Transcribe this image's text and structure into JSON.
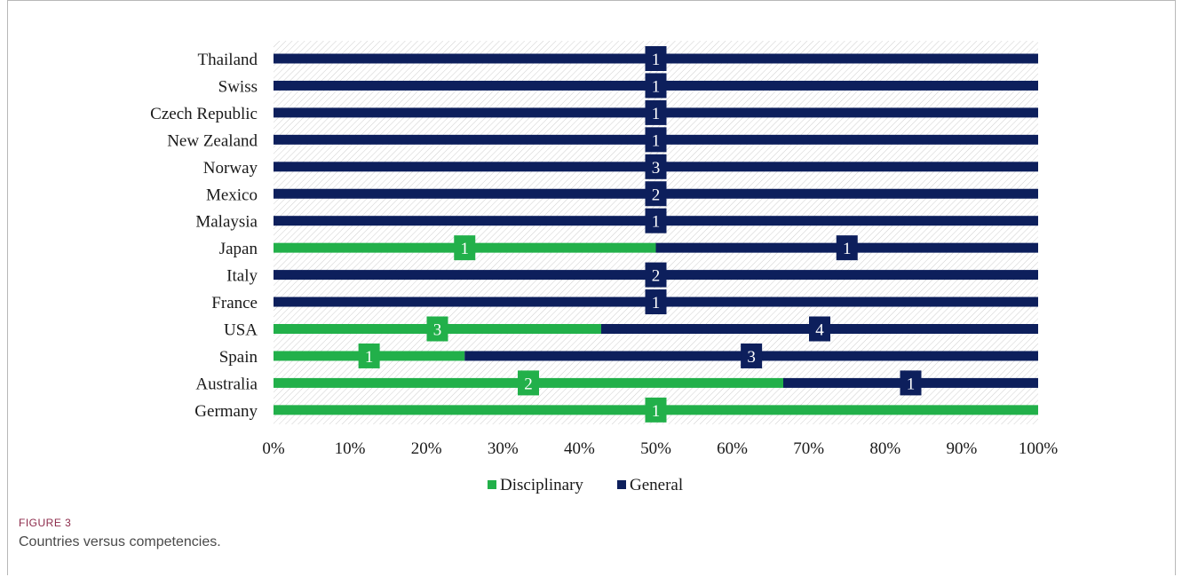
{
  "figure": {
    "label": "FIGURE 3",
    "caption": "Countries versus competencies."
  },
  "colors": {
    "disciplinary": "#22b04a",
    "general": "#0d1f5c",
    "hatch": "#c8c8c8"
  },
  "chart_data": {
    "type": "bar",
    "orientation": "horizontal",
    "stacked": "percent",
    "title": "",
    "xlabel": "",
    "ylabel": "",
    "xlim": [
      0,
      100
    ],
    "x_ticks": [
      "0%",
      "10%",
      "20%",
      "30%",
      "40%",
      "50%",
      "60%",
      "70%",
      "80%",
      "90%",
      "100%"
    ],
    "legend_position": "bottom",
    "categories": [
      "Thailand",
      "Swiss",
      "Czech Republic",
      "New Zealand",
      "Norway",
      "Mexico",
      "Malaysia",
      "Japan",
      "Italy",
      "France",
      "USA",
      "Spain",
      "Australia",
      "Germany"
    ],
    "series": [
      {
        "name": "Disciplinary",
        "values": [
          0,
          0,
          0,
          0,
          0,
          0,
          0,
          1,
          0,
          0,
          3,
          1,
          2,
          1
        ]
      },
      {
        "name": "General",
        "values": [
          1,
          1,
          1,
          1,
          3,
          2,
          1,
          1,
          2,
          1,
          4,
          3,
          1,
          0
        ]
      }
    ]
  }
}
